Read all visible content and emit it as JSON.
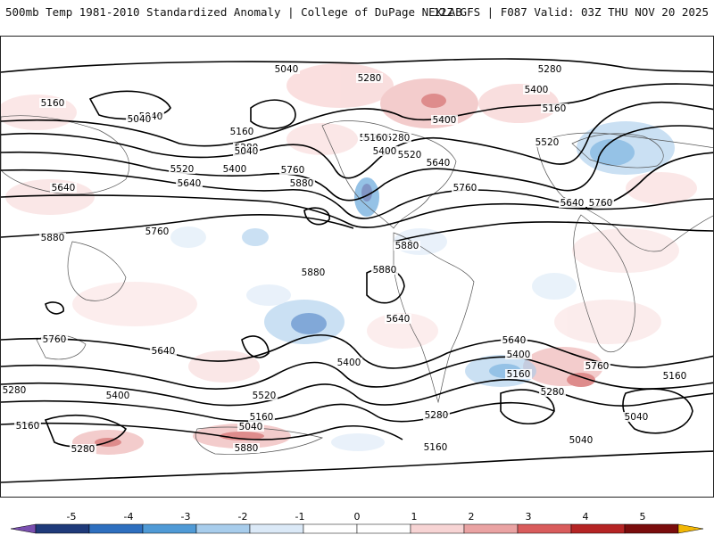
{
  "header": {
    "title": "500mb Temp 1981-2010 Standardized Anomaly | College of DuPage NEXLAB",
    "run_info": "12Z GFS | F087 Valid: 03Z THU NOV 20 2025"
  },
  "contour_labels": [
    "5160",
    "5280",
    "5400",
    "5520",
    "5040",
    "5280",
    "5160",
    "5040",
    "5400",
    "5520",
    "5640",
    "5760",
    "5880",
    "5640",
    "5760",
    "5880",
    "5880",
    "5880",
    "5760",
    "5640",
    "5520",
    "5400",
    "5280",
    "5160",
    "5040",
    "5640",
    "5760",
    "5520",
    "5400",
    "5280",
    "5160",
    "5040",
    "5400",
    "5160",
    "5280",
    "5640",
    "5400",
    "5760",
    "5160",
    "5040",
    "5040",
    "5160",
    "5280",
    "5400",
    "5520",
    "5640",
    "5760",
    "5280",
    "5160",
    "5040",
    "5280",
    "5160",
    "5640",
    "5880",
    "5880"
  ],
  "colorbar": {
    "ticks": [
      "-5",
      "-4",
      "-3",
      "-2",
      "-1",
      "0",
      "1",
      "2",
      "3",
      "4",
      "5"
    ],
    "colors": [
      "#7a4fb0",
      "#1f3a7a",
      "#2e6fbf",
      "#4f9ad6",
      "#a8cdec",
      "#dbe9f7",
      "#ffffff",
      "#ffffff",
      "#f7d4d4",
      "#eaa3a3",
      "#d95c5c",
      "#b52424",
      "#7a0c0c",
      "#f2b705"
    ]
  }
}
